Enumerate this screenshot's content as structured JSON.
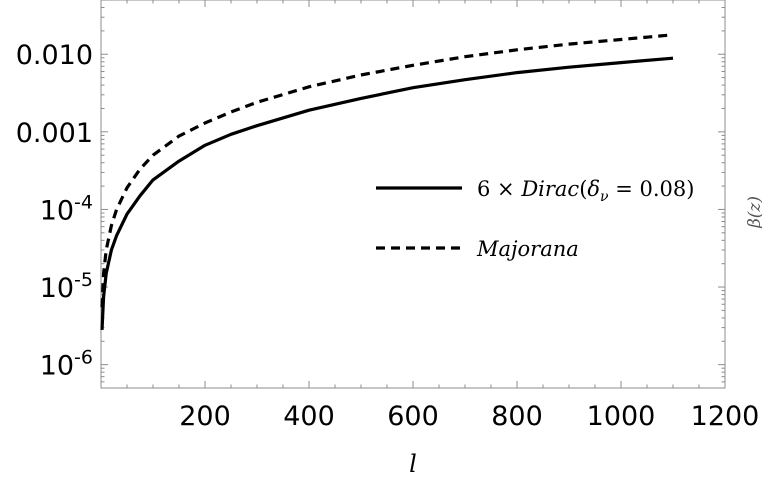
{
  "chart_data": {
    "type": "line",
    "title": "",
    "xlabel": "l",
    "ylabel": "",
    "xlim": [
      0,
      1200
    ],
    "ylim": [
      5e-07,
      0.05
    ],
    "yscale": "log",
    "grid": false,
    "legend_position": "center-right",
    "x_ticks": [
      200,
      400,
      600,
      800,
      1000,
      1200
    ],
    "x_tick_labels": [
      "200",
      "400",
      "600",
      "800",
      "1000",
      "1200"
    ],
    "y_ticks": [
      1e-06,
      1e-05,
      0.0001,
      0.001,
      0.01
    ],
    "y_tick_labels": [
      {
        "base": "10",
        "exp": "-6"
      },
      {
        "base": "10",
        "exp": "-5"
      },
      {
        "base": "10",
        "exp": "-4"
      },
      {
        "base": "0.001",
        "exp": ""
      },
      {
        "base": "0.010",
        "exp": ""
      }
    ],
    "series": [
      {
        "name": "6 × Dirac(δν = 0.08)",
        "style": "solid",
        "color": "#000000",
        "x": [
          2,
          5,
          10,
          20,
          30,
          50,
          75,
          100,
          150,
          200,
          250,
          300,
          400,
          500,
          600,
          700,
          800,
          900,
          1000,
          1100
        ],
        "y": [
          2.8e-06,
          7.5e-06,
          1.5e-05,
          3e-05,
          4.6e-05,
          8.7e-05,
          0.00015,
          0.00024,
          0.00042,
          0.00067,
          0.00093,
          0.0012,
          0.0019,
          0.0027,
          0.0037,
          0.0047,
          0.0058,
          0.0068,
          0.0078,
          0.0089
        ]
      },
      {
        "name": "Majorana",
        "style": "dashed",
        "color": "#000000",
        "x": [
          2,
          5,
          10,
          20,
          30,
          50,
          75,
          100,
          150,
          200,
          250,
          300,
          400,
          500,
          600,
          700,
          800,
          900,
          1000,
          1100
        ],
        "y": [
          5.5e-06,
          1.5e-05,
          3e-05,
          6.2e-05,
          0.0001,
          0.00019,
          0.00033,
          0.0005,
          0.00088,
          0.0013,
          0.0018,
          0.0024,
          0.0038,
          0.0054,
          0.0072,
          0.0093,
          0.0114,
          0.0135,
          0.0155,
          0.0178
        ]
      }
    ],
    "legend": {
      "dirac": {
        "prefix": "6 × ",
        "word": "Dirac",
        "open": "(",
        "delta": "δ",
        "sub": "ν",
        "eq": " = 0.08)"
      },
      "majorana": "Majorana"
    },
    "edge_label": "β(z)"
  }
}
